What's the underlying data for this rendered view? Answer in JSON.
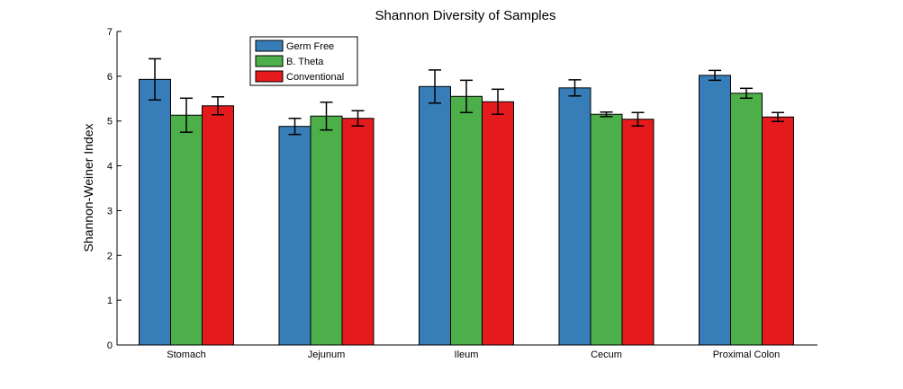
{
  "chart_data": {
    "type": "bar",
    "title": "Shannon Diversity of Samples",
    "xlabel": "",
    "ylabel": "Shannon-Weiner Index",
    "ylim": [
      0,
      7
    ],
    "yticks": [
      "0",
      "1",
      "2",
      "3",
      "4",
      "5",
      "6",
      "7"
    ],
    "categories": [
      "Stomach",
      "Jejunum",
      "Ileum",
      "Cecum",
      "Proximal Colon"
    ],
    "series": [
      {
        "name": "Germ Free",
        "color": "#377eb8",
        "values": [
          5.93,
          4.88,
          5.77,
          5.74,
          6.02
        ],
        "errors": [
          0.46,
          0.18,
          0.37,
          0.18,
          0.11
        ]
      },
      {
        "name": "B. Theta",
        "color": "#4daf4a",
        "values": [
          5.13,
          5.11,
          5.55,
          5.15,
          5.62
        ],
        "errors": [
          0.38,
          0.31,
          0.36,
          0.05,
          0.11
        ]
      },
      {
        "name": "Conventional",
        "color": "#e41a1c",
        "values": [
          5.34,
          5.06,
          5.43,
          5.04,
          5.09
        ],
        "errors": [
          0.2,
          0.17,
          0.28,
          0.15,
          0.1
        ]
      }
    ],
    "grid": false,
    "legend_position": "top-left"
  }
}
